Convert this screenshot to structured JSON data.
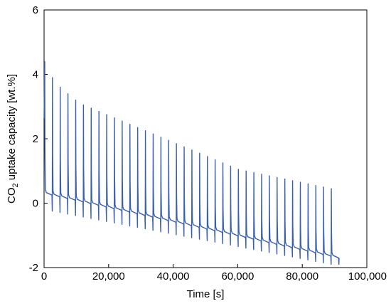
{
  "chart_data": {
    "type": "line",
    "title": "",
    "xlabel": "Time [s]",
    "ylabel_main": "CO",
    "ylabel_sub": "2",
    "ylabel_rest": " uptake capacity [wt.%]",
    "xlim": [
      0,
      100000
    ],
    "ylim": [
      -2,
      6
    ],
    "x_ticks": [
      0,
      20000,
      40000,
      60000,
      80000,
      100000
    ],
    "x_tick_labels": [
      "0",
      "20,000",
      "40,000",
      "60,000",
      "80,000",
      "100,000"
    ],
    "y_ticks": [
      -2,
      0,
      2,
      4,
      6
    ],
    "y_tick_labels": [
      "-2",
      "0",
      "2",
      "4",
      "6"
    ],
    "grid": false,
    "series": [
      {
        "color": "#3a5fae",
        "cycle_count": 38,
        "cycle_period": 2400,
        "baseline_start": 0.3,
        "baseline_end": -1.65,
        "trough_start": -0.2,
        "trough_end": -1.9,
        "peaks": [
          4.4,
          3.9,
          3.6,
          3.4,
          3.2,
          3.05,
          2.95,
          2.85,
          2.75,
          2.65,
          2.55,
          2.45,
          2.35,
          2.25,
          2.15,
          2.05,
          1.95,
          1.85,
          1.75,
          1.65,
          1.55,
          1.45,
          1.35,
          1.25,
          1.15,
          1.05,
          1.0,
          0.95,
          0.9,
          0.85,
          0.8,
          0.75,
          0.7,
          0.65,
          0.6,
          0.55,
          0.5,
          0.45
        ]
      }
    ]
  }
}
